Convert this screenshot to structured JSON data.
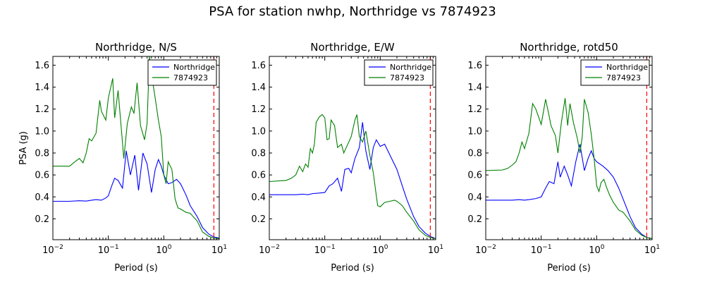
{
  "figure": {
    "title": "PSA for station nwhp, Northridge vs 7874923"
  },
  "chart_data": [
    {
      "type": "line",
      "title": "Northridge, N/S",
      "xlabel": "Period (s)",
      "ylabel": "PSA (g)",
      "xscale": "log",
      "xlim": [
        0.01,
        10
      ],
      "ylim": [
        0.01,
        1.68
      ],
      "xticks": [
        "10^-2",
        "10^-1",
        "10^0",
        "10^1"
      ],
      "yticks": [
        0.2,
        0.4,
        0.6,
        0.8,
        1.0,
        1.2,
        1.4,
        1.6
      ],
      "legend": "top-right",
      "vline": {
        "x": 8,
        "color": "#ff0000",
        "style": "dashed"
      },
      "series": [
        {
          "name": "Northridge",
          "color": "#0000ff",
          "points": [
            [
              0.01,
              0.36
            ],
            [
              0.02,
              0.36
            ],
            [
              0.03,
              0.365
            ],
            [
              0.04,
              0.362
            ],
            [
              0.05,
              0.37
            ],
            [
              0.06,
              0.375
            ],
            [
              0.075,
              0.37
            ],
            [
              0.09,
              0.39
            ],
            [
              0.1,
              0.41
            ],
            [
              0.115,
              0.5
            ],
            [
              0.13,
              0.57
            ],
            [
              0.15,
              0.55
            ],
            [
              0.18,
              0.48
            ],
            [
              0.21,
              0.82
            ],
            [
              0.25,
              0.6
            ],
            [
              0.3,
              0.78
            ],
            [
              0.35,
              0.46
            ],
            [
              0.42,
              0.8
            ],
            [
              0.5,
              0.7
            ],
            [
              0.6,
              0.44
            ],
            [
              0.7,
              0.65
            ],
            [
              0.8,
              0.74
            ],
            [
              0.9,
              0.68
            ],
            [
              1.0,
              0.6
            ],
            [
              1.2,
              0.52
            ],
            [
              1.4,
              0.53
            ],
            [
              1.7,
              0.56
            ],
            [
              2.0,
              0.52
            ],
            [
              2.5,
              0.42
            ],
            [
              3.0,
              0.32
            ],
            [
              4.0,
              0.22
            ],
            [
              5.0,
              0.12
            ],
            [
              6.5,
              0.06
            ],
            [
              8.0,
              0.035
            ],
            [
              10.0,
              0.025
            ]
          ]
        },
        {
          "name": "7874923",
          "color": "#008000",
          "points": [
            [
              0.01,
              0.68
            ],
            [
              0.015,
              0.68
            ],
            [
              0.02,
              0.68
            ],
            [
              0.025,
              0.72
            ],
            [
              0.03,
              0.75
            ],
            [
              0.035,
              0.71
            ],
            [
              0.04,
              0.8
            ],
            [
              0.045,
              0.93
            ],
            [
              0.05,
              0.91
            ],
            [
              0.06,
              0.98
            ],
            [
              0.07,
              1.28
            ],
            [
              0.075,
              1.18
            ],
            [
              0.09,
              1.1
            ],
            [
              0.1,
              1.3
            ],
            [
              0.12,
              1.48
            ],
            [
              0.13,
              1.12
            ],
            [
              0.15,
              1.37
            ],
            [
              0.19,
              0.75
            ],
            [
              0.22,
              1.07
            ],
            [
              0.26,
              1.22
            ],
            [
              0.29,
              1.16
            ],
            [
              0.33,
              1.44
            ],
            [
              0.38,
              1.05
            ],
            [
              0.45,
              0.92
            ],
            [
              0.5,
              1.07
            ],
            [
              0.55,
              1.68
            ],
            [
              0.6,
              1.52
            ],
            [
              0.7,
              1.3
            ],
            [
              0.8,
              1.1
            ],
            [
              0.9,
              0.95
            ],
            [
              1.0,
              0.6
            ],
            [
              1.1,
              0.52
            ],
            [
              1.2,
              0.72
            ],
            [
              1.4,
              0.65
            ],
            [
              1.6,
              0.38
            ],
            [
              1.8,
              0.3
            ],
            [
              2.0,
              0.29
            ],
            [
              2.5,
              0.26
            ],
            [
              3.0,
              0.25
            ],
            [
              4.0,
              0.18
            ],
            [
              5.0,
              0.08
            ],
            [
              6.5,
              0.04
            ],
            [
              8.0,
              0.025
            ],
            [
              10.0,
              0.02
            ]
          ]
        }
      ]
    },
    {
      "type": "line",
      "title": "Northridge, E/W",
      "xlabel": "Period (s)",
      "ylabel": "",
      "xscale": "log",
      "xlim": [
        0.01,
        10
      ],
      "ylim": [
        0.01,
        1.68
      ],
      "xticks": [
        "10^-2",
        "10^-1",
        "10^0",
        "10^1"
      ],
      "yticks": [
        0.2,
        0.4,
        0.6,
        0.8,
        1.0,
        1.2,
        1.4,
        1.6
      ],
      "legend": "top-right",
      "vline": {
        "x": 8,
        "color": "#ff0000",
        "style": "dashed"
      },
      "series": [
        {
          "name": "Northridge",
          "color": "#0000ff",
          "points": [
            [
              0.01,
              0.42
            ],
            [
              0.02,
              0.42
            ],
            [
              0.03,
              0.42
            ],
            [
              0.04,
              0.425
            ],
            [
              0.05,
              0.42
            ],
            [
              0.06,
              0.43
            ],
            [
              0.08,
              0.435
            ],
            [
              0.1,
              0.44
            ],
            [
              0.12,
              0.5
            ],
            [
              0.14,
              0.52
            ],
            [
              0.17,
              0.57
            ],
            [
              0.2,
              0.45
            ],
            [
              0.23,
              0.65
            ],
            [
              0.27,
              0.66
            ],
            [
              0.3,
              0.62
            ],
            [
              0.35,
              0.75
            ],
            [
              0.42,
              0.85
            ],
            [
              0.48,
              1.08
            ],
            [
              0.55,
              0.82
            ],
            [
              0.65,
              0.65
            ],
            [
              0.75,
              0.85
            ],
            [
              0.85,
              0.92
            ],
            [
              1.0,
              0.86
            ],
            [
              1.2,
              0.88
            ],
            [
              1.5,
              0.78
            ],
            [
              2.0,
              0.65
            ],
            [
              2.5,
              0.5
            ],
            [
              3.0,
              0.38
            ],
            [
              4.0,
              0.22
            ],
            [
              5.0,
              0.13
            ],
            [
              6.5,
              0.07
            ],
            [
              8.0,
              0.04
            ],
            [
              10.0,
              0.02
            ]
          ]
        },
        {
          "name": "7874923",
          "color": "#008000",
          "points": [
            [
              0.01,
              0.54
            ],
            [
              0.02,
              0.55
            ],
            [
              0.025,
              0.57
            ],
            [
              0.03,
              0.6
            ],
            [
              0.035,
              0.68
            ],
            [
              0.04,
              0.63
            ],
            [
              0.045,
              0.7
            ],
            [
              0.05,
              0.67
            ],
            [
              0.055,
              0.84
            ],
            [
              0.06,
              0.8
            ],
            [
              0.065,
              0.88
            ],
            [
              0.07,
              1.08
            ],
            [
              0.08,
              1.13
            ],
            [
              0.09,
              1.15
            ],
            [
              0.1,
              1.12
            ],
            [
              0.11,
              0.92
            ],
            [
              0.12,
              0.93
            ],
            [
              0.13,
              1.1
            ],
            [
              0.15,
              1.05
            ],
            [
              0.17,
              0.85
            ],
            [
              0.2,
              0.88
            ],
            [
              0.22,
              0.8
            ],
            [
              0.26,
              0.88
            ],
            [
              0.3,
              0.95
            ],
            [
              0.35,
              1.1
            ],
            [
              0.38,
              1.15
            ],
            [
              0.42,
              0.95
            ],
            [
              0.48,
              0.9
            ],
            [
              0.55,
              1.0
            ],
            [
              0.65,
              0.78
            ],
            [
              0.75,
              0.62
            ],
            [
              0.85,
              0.41
            ],
            [
              0.9,
              0.32
            ],
            [
              1.0,
              0.31
            ],
            [
              1.2,
              0.35
            ],
            [
              1.5,
              0.36
            ],
            [
              1.8,
              0.37
            ],
            [
              2.0,
              0.36
            ],
            [
              2.5,
              0.32
            ],
            [
              3.0,
              0.26
            ],
            [
              4.0,
              0.18
            ],
            [
              5.0,
              0.1
            ],
            [
              6.5,
              0.05
            ],
            [
              8.0,
              0.03
            ],
            [
              10.0,
              0.02
            ]
          ]
        }
      ]
    },
    {
      "type": "line",
      "title": "Northridge, rotd50",
      "xlabel": "Period (s)",
      "ylabel": "",
      "xscale": "log",
      "xlim": [
        0.01,
        10
      ],
      "ylim": [
        0.01,
        1.68
      ],
      "xticks": [
        "10^-2",
        "10^-1",
        "10^0",
        "10^1"
      ],
      "yticks": [
        0.2,
        0.4,
        0.6,
        0.8,
        1.0,
        1.2,
        1.4,
        1.6
      ],
      "legend": "top-right",
      "vline": {
        "x": 8,
        "color": "#ff0000",
        "style": "dashed"
      },
      "series": [
        {
          "name": "Northridge",
          "color": "#0000ff",
          "points": [
            [
              0.01,
              0.37
            ],
            [
              0.02,
              0.37
            ],
            [
              0.03,
              0.37
            ],
            [
              0.04,
              0.375
            ],
            [
              0.05,
              0.37
            ],
            [
              0.06,
              0.375
            ],
            [
              0.08,
              0.385
            ],
            [
              0.1,
              0.4
            ],
            [
              0.12,
              0.48
            ],
            [
              0.14,
              0.54
            ],
            [
              0.17,
              0.52
            ],
            [
              0.2,
              0.72
            ],
            [
              0.22,
              0.58
            ],
            [
              0.26,
              0.68
            ],
            [
              0.3,
              0.6
            ],
            [
              0.35,
              0.5
            ],
            [
              0.42,
              0.72
            ],
            [
              0.5,
              0.88
            ],
            [
              0.6,
              0.64
            ],
            [
              0.7,
              0.75
            ],
            [
              0.8,
              0.82
            ],
            [
              0.9,
              0.75
            ],
            [
              1.0,
              0.72
            ],
            [
              1.3,
              0.68
            ],
            [
              1.6,
              0.64
            ],
            [
              2.0,
              0.58
            ],
            [
              2.5,
              0.48
            ],
            [
              3.0,
              0.38
            ],
            [
              4.0,
              0.22
            ],
            [
              5.0,
              0.12
            ],
            [
              6.5,
              0.06
            ],
            [
              8.0,
              0.03
            ],
            [
              10.0,
              0.02
            ]
          ]
        },
        {
          "name": "7874923",
          "color": "#008000",
          "points": [
            [
              0.01,
              0.64
            ],
            [
              0.02,
              0.645
            ],
            [
              0.025,
              0.66
            ],
            [
              0.03,
              0.69
            ],
            [
              0.035,
              0.72
            ],
            [
              0.04,
              0.8
            ],
            [
              0.045,
              0.9
            ],
            [
              0.05,
              0.84
            ],
            [
              0.06,
              0.98
            ],
            [
              0.07,
              1.25
            ],
            [
              0.08,
              1.2
            ],
            [
              0.1,
              1.06
            ],
            [
              0.12,
              1.29
            ],
            [
              0.14,
              1.13
            ],
            [
              0.15,
              1.05
            ],
            [
              0.18,
              0.96
            ],
            [
              0.2,
              0.8
            ],
            [
              0.23,
              1.07
            ],
            [
              0.27,
              1.3
            ],
            [
              0.3,
              1.05
            ],
            [
              0.33,
              1.25
            ],
            [
              0.38,
              1.08
            ],
            [
              0.45,
              0.93
            ],
            [
              0.5,
              0.8
            ],
            [
              0.55,
              0.95
            ],
            [
              0.6,
              1.29
            ],
            [
              0.7,
              1.17
            ],
            [
              0.8,
              0.97
            ],
            [
              0.9,
              0.75
            ],
            [
              1.0,
              0.5
            ],
            [
              1.1,
              0.45
            ],
            [
              1.2,
              0.53
            ],
            [
              1.35,
              0.56
            ],
            [
              1.5,
              0.49
            ],
            [
              1.7,
              0.42
            ],
            [
              2.0,
              0.35
            ],
            [
              2.5,
              0.28
            ],
            [
              3.0,
              0.26
            ],
            [
              4.0,
              0.18
            ],
            [
              5.0,
              0.1
            ],
            [
              6.5,
              0.05
            ],
            [
              8.0,
              0.03
            ],
            [
              10.0,
              0.02
            ]
          ]
        }
      ]
    }
  ]
}
